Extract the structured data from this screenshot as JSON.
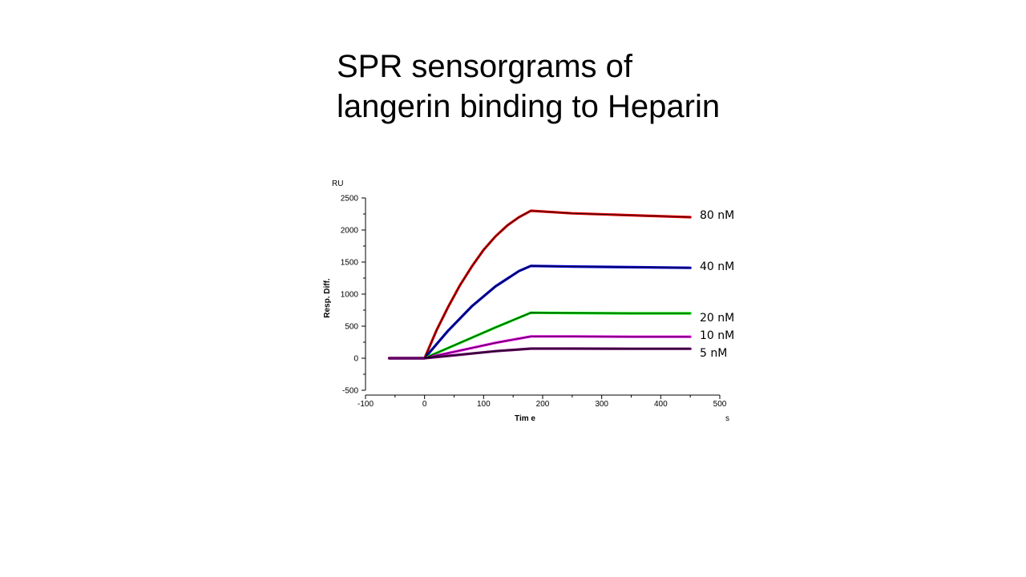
{
  "slide": {
    "title_line1": "SPR sensorgrams of",
    "title_line2": "langerin binding to Heparin"
  },
  "chart_data": {
    "type": "line",
    "title": "",
    "xlabel": "Tim e",
    "ylabel": "Resp. Diff.",
    "y_unit": "RU",
    "x_unit": "s",
    "xlim": [
      -100,
      500
    ],
    "ylim": [
      -500,
      2500
    ],
    "x_ticks": [
      -100,
      0,
      100,
      200,
      300,
      400,
      500
    ],
    "y_ticks": [
      -500,
      0,
      500,
      1000,
      1500,
      2000,
      2500
    ],
    "grid": false,
    "fit_color": "#000000",
    "series": [
      {
        "name": "80 nM",
        "color": "#e00000",
        "points": [
          [
            -60,
            0
          ],
          [
            0,
            0
          ],
          [
            20,
            430
          ],
          [
            40,
            800
          ],
          [
            60,
            1140
          ],
          [
            80,
            1430
          ],
          [
            100,
            1690
          ],
          [
            120,
            1900
          ],
          [
            140,
            2070
          ],
          [
            160,
            2200
          ],
          [
            180,
            2300
          ],
          [
            250,
            2260
          ],
          [
            350,
            2230
          ],
          [
            450,
            2200
          ]
        ]
      },
      {
        "name": "40 nM",
        "color": "#0000cc",
        "points": [
          [
            -60,
            0
          ],
          [
            0,
            0
          ],
          [
            40,
            430
          ],
          [
            80,
            810
          ],
          [
            120,
            1120
          ],
          [
            160,
            1360
          ],
          [
            180,
            1440
          ],
          [
            250,
            1430
          ],
          [
            350,
            1420
          ],
          [
            450,
            1410
          ]
        ]
      },
      {
        "name": "20 nM",
        "color": "#00dd00",
        "points": [
          [
            -60,
            0
          ],
          [
            0,
            0
          ],
          [
            60,
            240
          ],
          [
            120,
            480
          ],
          [
            180,
            710
          ],
          [
            250,
            705
          ],
          [
            350,
            700
          ],
          [
            450,
            700
          ]
        ]
      },
      {
        "name": "10 nM",
        "color": "#ee00ee",
        "points": [
          [
            -60,
            0
          ],
          [
            0,
            0
          ],
          [
            60,
            120
          ],
          [
            120,
            240
          ],
          [
            180,
            340
          ],
          [
            250,
            340
          ],
          [
            350,
            335
          ],
          [
            450,
            335
          ]
        ]
      },
      {
        "name": "5 nM",
        "color": "#660066",
        "points": [
          [
            -60,
            0
          ],
          [
            0,
            0
          ],
          [
            60,
            55
          ],
          [
            120,
            110
          ],
          [
            180,
            150
          ],
          [
            250,
            150
          ],
          [
            350,
            148
          ],
          [
            450,
            147
          ]
        ]
      }
    ]
  }
}
